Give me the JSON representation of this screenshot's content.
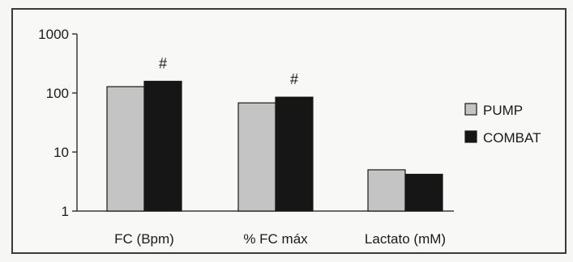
{
  "chart_data": {
    "type": "bar",
    "scale": "log",
    "categories": [
      "FC (Bpm)",
      "% FC máx",
      "Lactato (mM)"
    ],
    "series": [
      {
        "name": "PUMP",
        "values": [
          128,
          68,
          5.0
        ],
        "color": "#c4c4c4"
      },
      {
        "name": "COMBAT",
        "values": [
          158,
          85,
          4.2
        ],
        "color": "#161616"
      }
    ],
    "yticks": [
      "1",
      "10",
      "100",
      "1000"
    ],
    "ylim": [
      1,
      1000
    ],
    "annotations": [
      {
        "text": "#",
        "category": 0
      },
      {
        "text": "#",
        "category": 1
      }
    ],
    "title": "",
    "xlabel": "",
    "ylabel": "",
    "legend_position": "right",
    "grid": false
  }
}
